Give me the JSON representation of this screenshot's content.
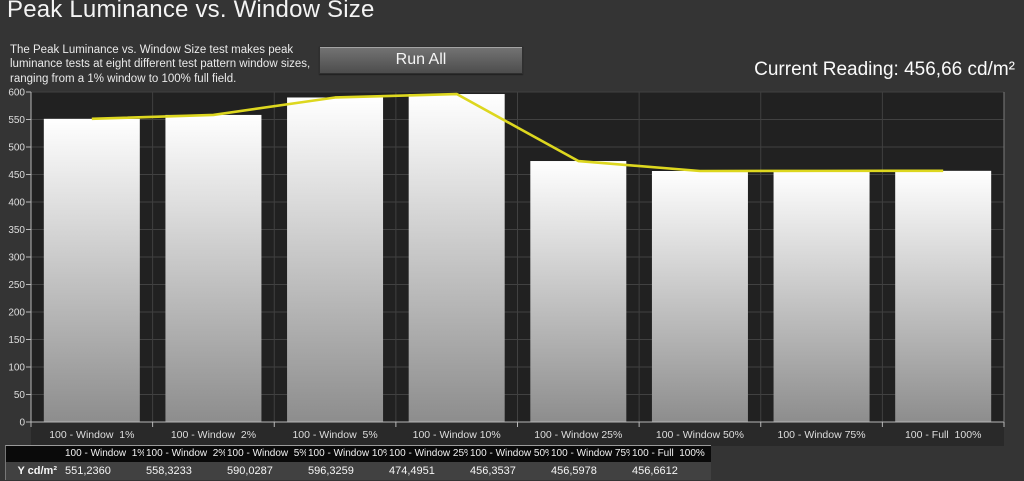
{
  "header": {
    "title": "Peak Luminance vs. Window Size",
    "description": "The Peak Luminance vs. Window Size test makes peak luminance tests at eight different test pattern window sizes, ranging from a 1% window to 100% full field.",
    "run_all_label": "Run All",
    "current_reading": "Current Reading: 456,66 cd/m²"
  },
  "chart_data": {
    "type": "bar",
    "title": "Peak Luminance vs. Window Size",
    "categories": [
      "100 - Window  1%",
      "100 - Window  2%",
      "100 - Window  5%",
      "100 - Window 10%",
      "100 - Window 25%",
      "100 - Window 50%",
      "100 - Window 75%",
      "100 - Full  100%"
    ],
    "values": [
      551.236,
      558.3233,
      590.0287,
      596.3259,
      474.4951,
      456.3537,
      456.5978,
      456.6612
    ],
    "ylabel": "",
    "xlabel": "",
    "ylim": [
      0,
      600
    ],
    "ytick_step": 50,
    "grid": true,
    "legend": "none",
    "overlay": "yellow line connecting bar-top centers",
    "colors": {
      "plot_bg": "#212121",
      "strip_bg": "#292929",
      "grid": "#414141",
      "axis": "#b8b8b8",
      "right_edge": "#7a7a7a",
      "tick_text": "#dedede",
      "bar_top": "#ffffff",
      "bar_bottom": "#8d8d8d",
      "line": "#ddd71f"
    }
  },
  "table": {
    "row_label": "Y cd/m²",
    "columns": [
      "100 - Window  1%",
      "100 - Window  2%",
      "100 - Window  5%",
      "100 - Window 10%",
      "100 - Window 25%",
      "100 - Window 50%",
      "100 - Window 75%",
      "100 - Full  100%"
    ],
    "values": [
      "551,2360",
      "558,3233",
      "590,0287",
      "596,3259",
      "474,4951",
      "456,3537",
      "456,5978",
      "456,6612"
    ]
  }
}
